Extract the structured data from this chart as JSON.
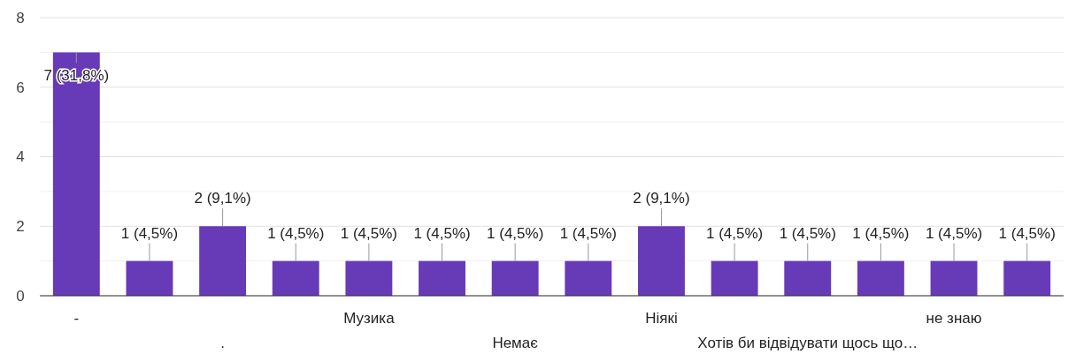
{
  "chart_data": {
    "type": "bar",
    "categories": [
      "-",
      null,
      ".",
      null,
      "Музика",
      null,
      "Немає",
      null,
      "Ніякі",
      null,
      "Хотів би відвідувати щось що…",
      null,
      "не знаю",
      null
    ],
    "values": [
      7,
      1,
      2,
      1,
      1,
      1,
      1,
      1,
      2,
      1,
      1,
      1,
      1,
      1
    ],
    "value_labels": [
      "7 (31,8%)",
      "1 (4,5%)",
      "2 (9,1%)",
      "1 (4,5%)",
      "1 (4,5%)",
      "1 (4,5%)",
      "1 (4,5%)",
      "1 (4,5%)",
      "2 (9,1%)",
      "1 (4,5%)",
      "1 (4,5%)",
      "1 (4,5%)",
      "1 (4,5%)",
      "1 (4,5%)"
    ],
    "color": "#673ab7",
    "ylim": [
      0,
      8
    ],
    "yticks": [
      0,
      {
        "value": 1,
        "label": null
      },
      2,
      {
        "value": 3,
        "label": null
      },
      4,
      {
        "value": 5,
        "label": null
      },
      6,
      {
        "value": 7,
        "label": null
      },
      8
    ],
    "grid": true
  }
}
